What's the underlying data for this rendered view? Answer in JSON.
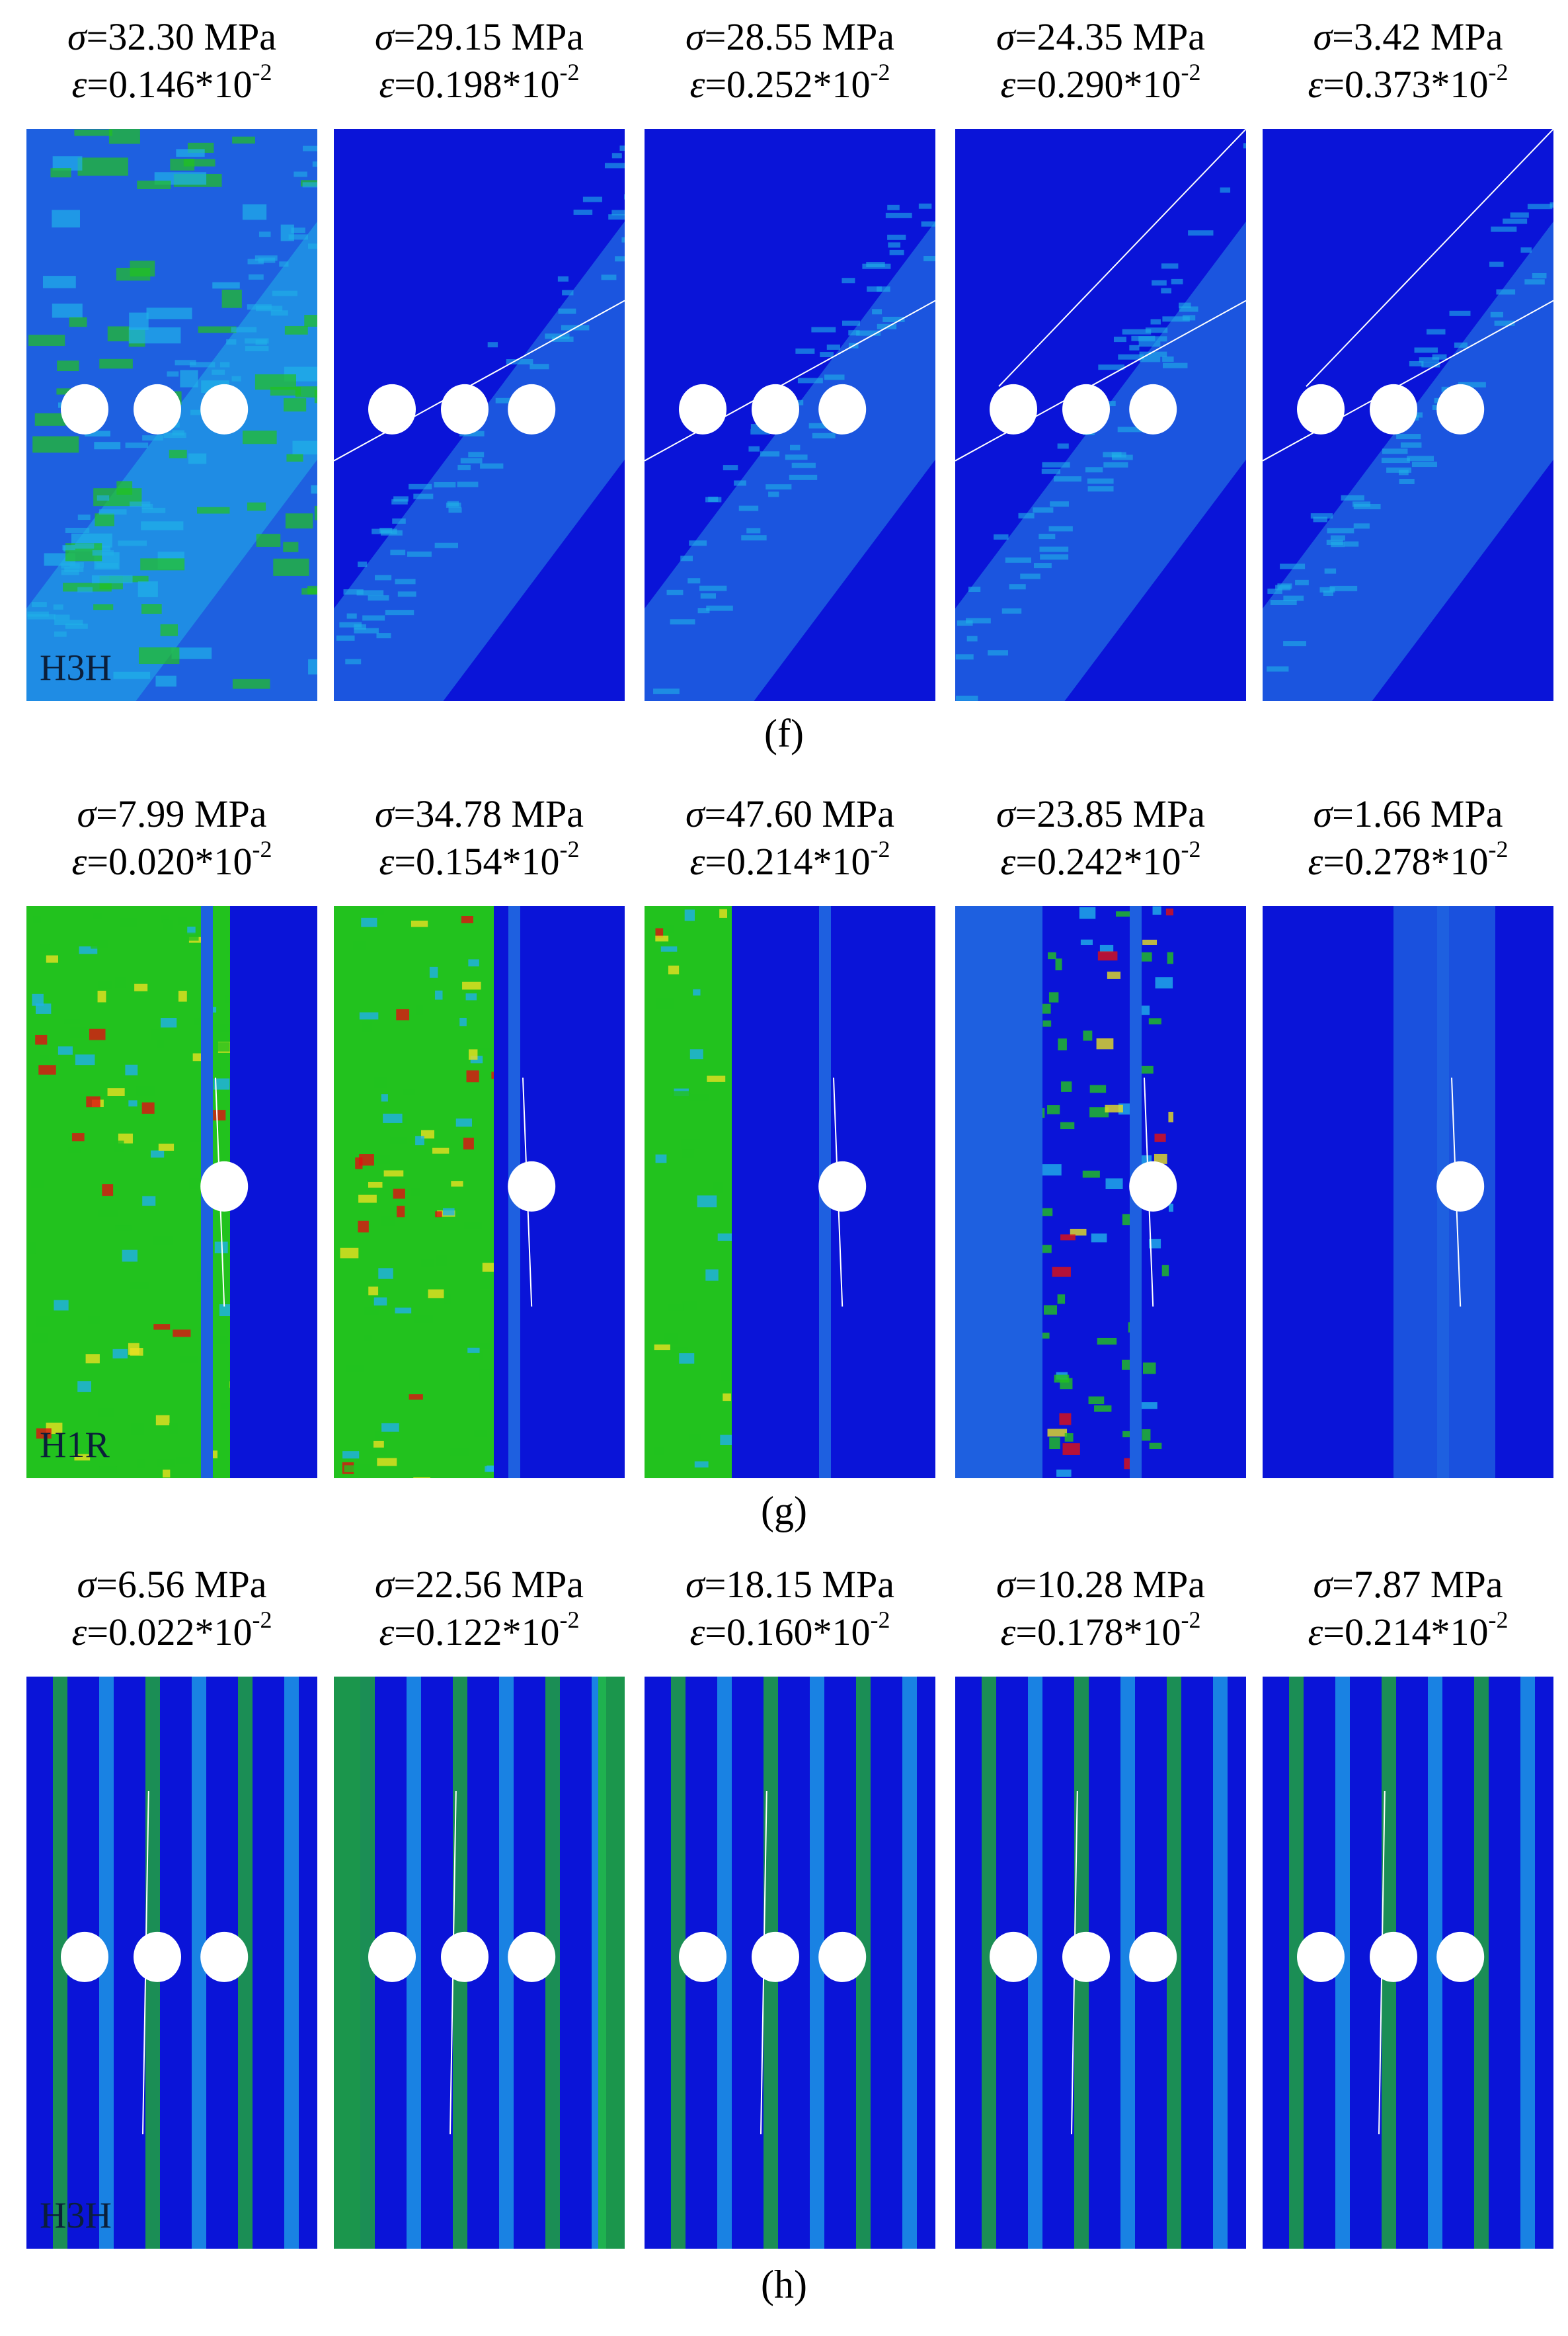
{
  "rows": [
    {
      "label": "(f)",
      "panel_label": "H3H",
      "pattern": "diag",
      "holes": 3,
      "captions": [
        {
          "stress": "32.30",
          "strain": "0.146"
        },
        {
          "stress": "29.15",
          "strain": "0.198"
        },
        {
          "stress": "28.55",
          "strain": "0.252"
        },
        {
          "stress": "24.35",
          "strain": "0.290"
        },
        {
          "stress": "3.42",
          "strain": "0.373"
        }
      ]
    },
    {
      "label": "(g)",
      "panel_label": "H1R",
      "pattern": "vert1",
      "holes": 1,
      "captions": [
        {
          "stress": "7.99",
          "strain": "0.020"
        },
        {
          "stress": "34.78",
          "strain": "0.154"
        },
        {
          "stress": "47.60",
          "strain": "0.214"
        },
        {
          "stress": "23.85",
          "strain": "0.242"
        },
        {
          "stress": "1.66",
          "strain": "0.278"
        }
      ]
    },
    {
      "label": "(h)",
      "panel_label": "H3H",
      "pattern": "vert3",
      "holes": 3,
      "captions": [
        {
          "stress": "6.56",
          "strain": "0.022"
        },
        {
          "stress": "22.56",
          "strain": "0.122"
        },
        {
          "stress": "18.15",
          "strain": "0.160"
        },
        {
          "stress": "10.28",
          "strain": "0.178"
        },
        {
          "stress": "7.87",
          "strain": "0.214"
        }
      ]
    }
  ],
  "symbols": {
    "sigma": "σ",
    "epsilon": "ε",
    "unit": "MPa",
    "factor": "*10",
    "exponent": "-2"
  },
  "colors": {
    "deep_blue": "#0a14d8",
    "mid_blue": "#1e60e0",
    "cyan": "#20b0e8",
    "green": "#22c21e",
    "yellow": "#e8e020",
    "red": "#e01010"
  }
}
